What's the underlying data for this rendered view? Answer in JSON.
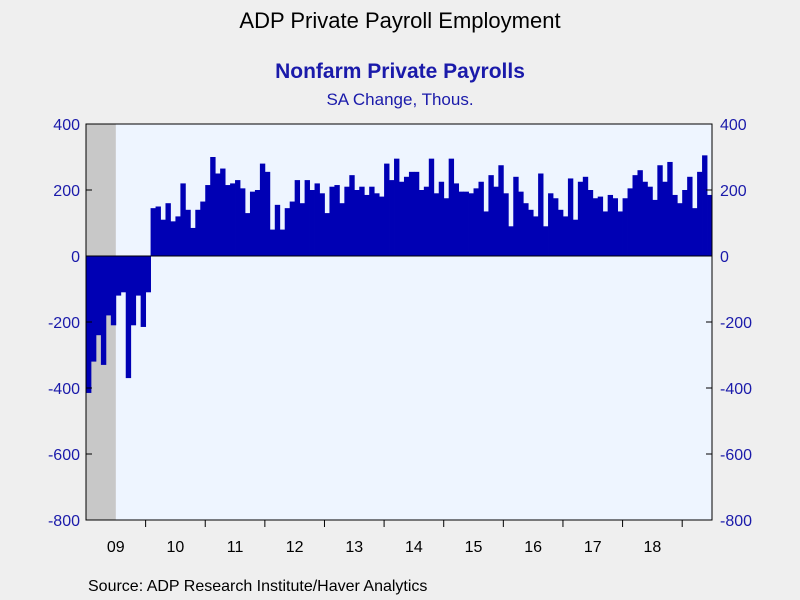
{
  "title": "ADP Private Payroll Employment",
  "subtitle": "Nonfarm Private Payrolls",
  "units": "SA Change, Thous.",
  "source": "Source:  ADP Research Institute/Haver Analytics",
  "colors": {
    "bar": "#0000b4",
    "plot_bg": "#eef5ff",
    "recession": "#c8c8c8",
    "axis_text": "#1a1aaa"
  },
  "chart_data": {
    "type": "bar",
    "title": "ADP Private Payroll Employment",
    "subtitle": "Nonfarm Private Payrolls",
    "ylabel": "SA Change, Thous.",
    "ylim": [
      -800,
      400
    ],
    "yticks": [
      400,
      200,
      0,
      -200,
      -400,
      -600,
      -800
    ],
    "y_axis_sides": [
      "left",
      "right"
    ],
    "grid": false,
    "x_tick_labels": [
      "09",
      "10",
      "11",
      "12",
      "13",
      "14",
      "15",
      "16",
      "17",
      "18"
    ],
    "start": "2009-01",
    "recession_shading": {
      "start": "2009-01",
      "end": "2009-06"
    },
    "values": [
      -415,
      -320,
      -240,
      -330,
      -180,
      -210,
      -120,
      -110,
      -370,
      -210,
      -120,
      -215,
      -110,
      145,
      150,
      110,
      160,
      105,
      120,
      220,
      140,
      85,
      140,
      165,
      215,
      300,
      250,
      265,
      215,
      220,
      230,
      205,
      130,
      195,
      200,
      280,
      255,
      80,
      155,
      80,
      145,
      165,
      230,
      160,
      230,
      200,
      220,
      190,
      130,
      210,
      215,
      160,
      210,
      245,
      200,
      210,
      185,
      210,
      190,
      180,
      280,
      230,
      295,
      225,
      240,
      255,
      255,
      200,
      210,
      295,
      190,
      225,
      175,
      295,
      220,
      195,
      195,
      190,
      205,
      225,
      135,
      245,
      210,
      275,
      190,
      90,
      240,
      195,
      160,
      140,
      120,
      250,
      90,
      190,
      175,
      140,
      120,
      235,
      110,
      225,
      240,
      200,
      175,
      180,
      135,
      185,
      175,
      135,
      175,
      205,
      245,
      260,
      225,
      210,
      170,
      275,
      225,
      285,
      185,
      160,
      200,
      240,
      145,
      255,
      305,
      185
    ]
  }
}
